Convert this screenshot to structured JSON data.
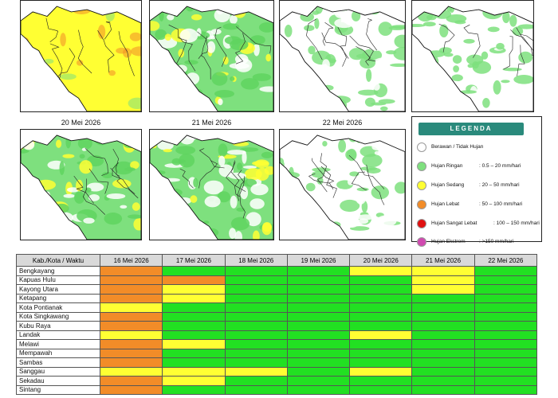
{
  "colors": {
    "berawan": "#ffffff",
    "ringan": "#7ee07e",
    "sedang": "#ffff33",
    "lebat": "#f28c28",
    "sangat_lebat": "#e01010",
    "ekstrem": "#d04ab0",
    "table_green": "#22e022",
    "table_yellow": "#ffff33",
    "table_orange": "#f28c28"
  },
  "maps": [
    {
      "date": "",
      "fill": "sedang"
    },
    {
      "date": "",
      "fill": "ringan"
    },
    {
      "date": "",
      "fill": "ringan-sparse"
    },
    {
      "date": "",
      "fill": "ringan-sparse"
    },
    {
      "date": "20 Mei 2026",
      "fill": "ringan"
    },
    {
      "date": "21 Mei 2026",
      "fill": "ringan"
    },
    {
      "date": "22 Mei 2026",
      "fill": "ringan-sparse"
    }
  ],
  "legend": {
    "title": "LEGENDA",
    "items": [
      {
        "color": "berawan",
        "label": "Berawan / Tidak Hujan",
        "range": ""
      },
      {
        "color": "ringan",
        "label": "Hujan Ringan",
        "range": ": 0.5 – 20 mm/hari"
      },
      {
        "color": "sedang",
        "label": "Hujan Sedang",
        "range": ": 20 – 50 mm/hari"
      },
      {
        "color": "lebat",
        "label": "Hujan Lebat",
        "range": ": 50 – 100 mm/hari"
      },
      {
        "color": "sangat_lebat",
        "label": "Hujan Sangat Lebat",
        "range": ": 100 – 150 mm/hari"
      },
      {
        "color": "ekstrem",
        "label": "Hujan Ekstrem",
        "range": ": >150 mm/hari"
      }
    ]
  },
  "table": {
    "header_first": "Kab./Kota / Waktu",
    "dates": [
      "16 Mei 2026",
      "17 Mei 2026",
      "18 Mei 2026",
      "19 Mei 2026",
      "20 Mei 2026",
      "21 Mei 2026",
      "22 Mei 2026"
    ],
    "rows": [
      {
        "name": "Bengkayang",
        "cells": [
          "O",
          "G",
          "G",
          "G",
          "Y",
          "Y",
          "G"
        ]
      },
      {
        "name": "Kapuas Hulu",
        "cells": [
          "O",
          "O",
          "G",
          "G",
          "G",
          "Y",
          "G"
        ]
      },
      {
        "name": "Kayong Utara",
        "cells": [
          "O",
          "Y",
          "G",
          "G",
          "G",
          "Y",
          "G"
        ]
      },
      {
        "name": "Ketapang",
        "cells": [
          "O",
          "Y",
          "G",
          "G",
          "G",
          "G",
          "G"
        ]
      },
      {
        "name": "Kota Pontianak",
        "cells": [
          "Y",
          "G",
          "G",
          "G",
          "G",
          "G",
          "G"
        ]
      },
      {
        "name": "Kota Singkawang",
        "cells": [
          "O",
          "G",
          "G",
          "G",
          "G",
          "G",
          "G"
        ]
      },
      {
        "name": "Kubu Raya",
        "cells": [
          "O",
          "G",
          "G",
          "G",
          "G",
          "G",
          "G"
        ]
      },
      {
        "name": "Landak",
        "cells": [
          "Y",
          "G",
          "G",
          "G",
          "Y",
          "G",
          "G"
        ]
      },
      {
        "name": "Melawi",
        "cells": [
          "O",
          "Y",
          "G",
          "G",
          "G",
          "G",
          "G"
        ]
      },
      {
        "name": "Mempawah",
        "cells": [
          "O",
          "G",
          "G",
          "G",
          "G",
          "G",
          "G"
        ]
      },
      {
        "name": "Sambas",
        "cells": [
          "O",
          "G",
          "G",
          "G",
          "G",
          "G",
          "G"
        ]
      },
      {
        "name": "Sanggau",
        "cells": [
          "Y",
          "Y",
          "Y",
          "G",
          "Y",
          "G",
          "G"
        ]
      },
      {
        "name": "Sekadau",
        "cells": [
          "O",
          "Y",
          "G",
          "G",
          "G",
          "G",
          "G"
        ]
      },
      {
        "name": "Sintang",
        "cells": [
          "O",
          "G",
          "G",
          "G",
          "G",
          "G",
          "G"
        ]
      }
    ]
  }
}
